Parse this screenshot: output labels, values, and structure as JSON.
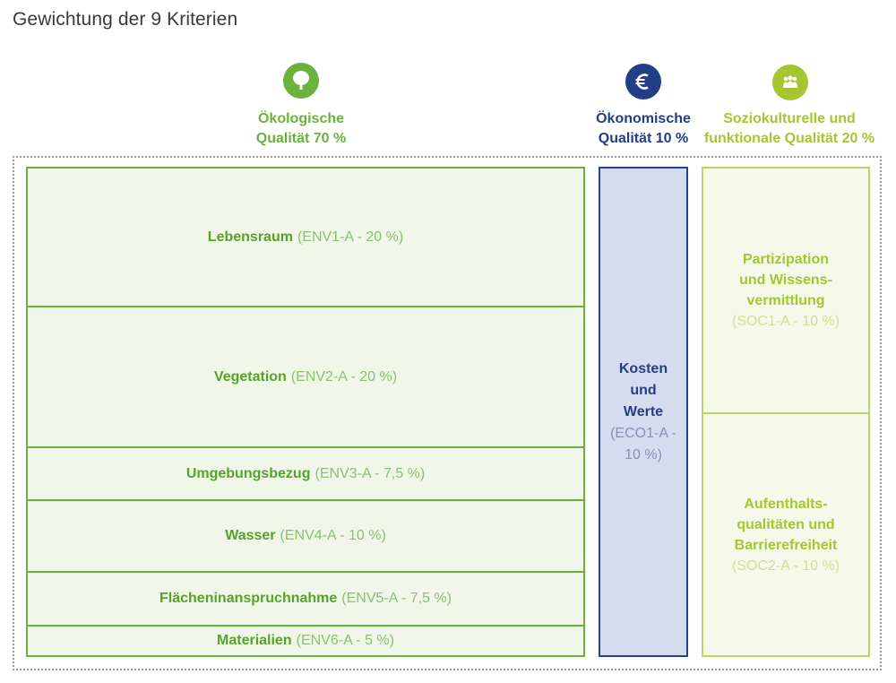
{
  "title": "Gewichtung der 9 Kriterien",
  "colors": {
    "env": "#6ab23d",
    "eco": "#223e86",
    "soc": "#a4c631"
  },
  "categories": {
    "env": {
      "icon": "tree-icon",
      "line1": "Ökologische",
      "line2": "Qualität 70 %"
    },
    "eco": {
      "icon": "euro-icon",
      "line1": "Ökonomische",
      "line2": "Qualität 10 %"
    },
    "soc": {
      "icon": "people-icon",
      "line1": "Soziokulturelle und",
      "line2": "funktionale Qualität 20 %"
    }
  },
  "env_criteria": [
    {
      "name": "Lebensraum",
      "code": "(ENV1-A - 20 %)",
      "weight": 20
    },
    {
      "name": "Vegetation",
      "code": "(ENV2-A - 20 %)",
      "weight": 20
    },
    {
      "name": "Umgebungsbezug",
      "code": "(ENV3-A - 7,5 %)",
      "weight": 7.5
    },
    {
      "name": "Wasser",
      "code": "(ENV4-A - 10 %)",
      "weight": 10
    },
    {
      "name": "Flächeninanspruchnahme",
      "code": "(ENV5-A - 7,5 %)",
      "weight": 7.5
    },
    {
      "name": "Materialien",
      "code": "(ENV6-A - 5 %)",
      "weight": 5
    }
  ],
  "eco_criterion": {
    "name": "Kosten\nund\nWerte",
    "code": "(ECO1-A -\n10 %)",
    "weight": 10
  },
  "soc_criteria": [
    {
      "name": "Partizipation\nund Wissens-\nvermittlung",
      "code": "(SOC1-A - 10 %)",
      "weight": 10
    },
    {
      "name": "Aufenthalts-\nqualitäten und\nBarrierefreiheit",
      "code": "(SOC2-A - 10 %)",
      "weight": 10
    }
  ]
}
